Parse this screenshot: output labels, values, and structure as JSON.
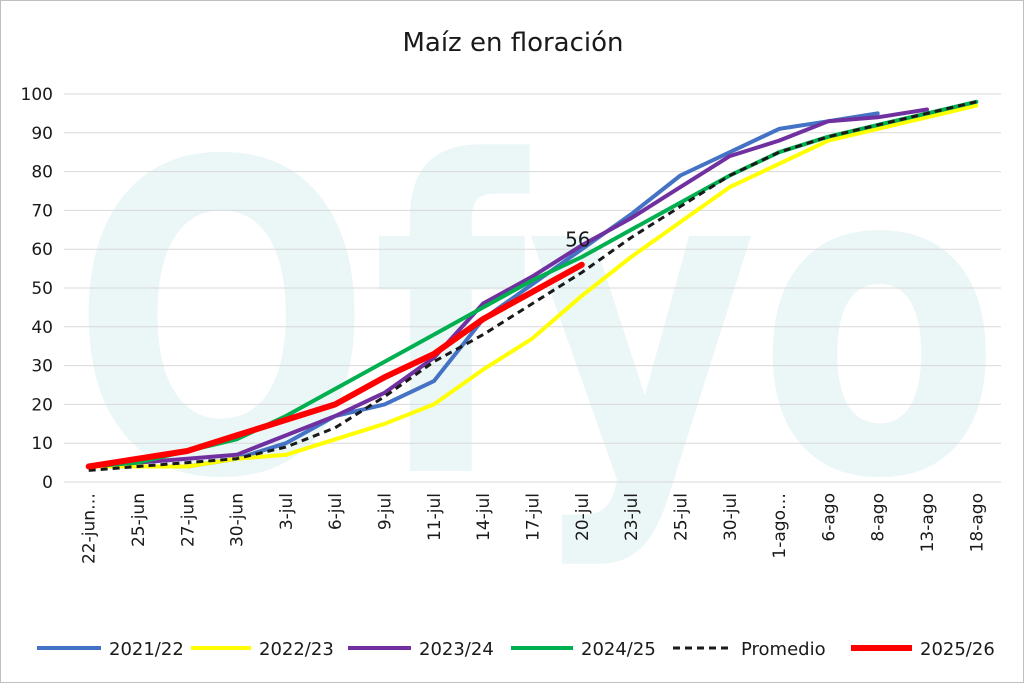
{
  "chart_data": {
    "type": "line",
    "title": "Maíz en floración",
    "xlabel": "",
    "ylabel": "",
    "ylim": [
      0,
      100
    ],
    "yticks": [
      0,
      10,
      20,
      30,
      40,
      50,
      60,
      70,
      80,
      90,
      100
    ],
    "grid": true,
    "legend_position": "bottom",
    "categories": [
      "22-jun…",
      "25-jun",
      "27-jun",
      "30-jun",
      "3-jul",
      "6-jul",
      "9-jul",
      "11-jul",
      "14-jul",
      "17-jul",
      "20-jul",
      "23-jul",
      "25-jul",
      "30-jul",
      "1-ago…",
      "6-ago",
      "8-ago",
      "13-ago",
      "18-ago"
    ],
    "series": [
      {
        "name": "2021/22",
        "color": "#4472c4",
        "dash": false,
        "width": 4,
        "values": [
          4,
          4,
          4,
          6,
          10,
          17,
          20,
          26,
          42,
          51,
          60,
          69,
          79,
          85,
          91,
          93,
          95,
          null,
          null
        ]
      },
      {
        "name": "2022/23",
        "color": "#ffff00",
        "dash": false,
        "width": 4,
        "values": [
          4,
          4,
          4,
          6,
          7,
          11,
          15,
          20,
          29,
          37,
          48,
          58,
          67,
          76,
          82,
          88,
          91,
          94,
          97
        ]
      },
      {
        "name": "2023/24",
        "color": "#7030a0",
        "dash": false,
        "width": 4,
        "values": [
          4,
          5,
          6,
          7,
          12,
          17,
          23,
          32,
          46,
          53,
          61,
          68,
          76,
          84,
          88,
          93,
          94,
          96,
          null
        ]
      },
      {
        "name": "2024/25",
        "color": "#00b050",
        "dash": false,
        "width": 4,
        "values": [
          4,
          5,
          8,
          11,
          17,
          24,
          31,
          38,
          45,
          52,
          58,
          65,
          72,
          79,
          85,
          89,
          92,
          95,
          98
        ]
      },
      {
        "name": "Promedio",
        "color": "#1a1a1a",
        "dash": true,
        "width": 3,
        "values": [
          3,
          4,
          5,
          6,
          9,
          14,
          22,
          31,
          38,
          46,
          54,
          63,
          71,
          79,
          85,
          89,
          92,
          95,
          98
        ]
      },
      {
        "name": "2025/26",
        "color": "#ff0000",
        "dash": false,
        "width": 6,
        "values": [
          4,
          6,
          8,
          12,
          16,
          20,
          27,
          33,
          42,
          49,
          56,
          null,
          null,
          null,
          null,
          null,
          null,
          null,
          null
        ]
      }
    ],
    "annotations": [
      {
        "text": "56",
        "series": "2025/26",
        "category": "20-jul",
        "value": 56
      }
    ]
  }
}
